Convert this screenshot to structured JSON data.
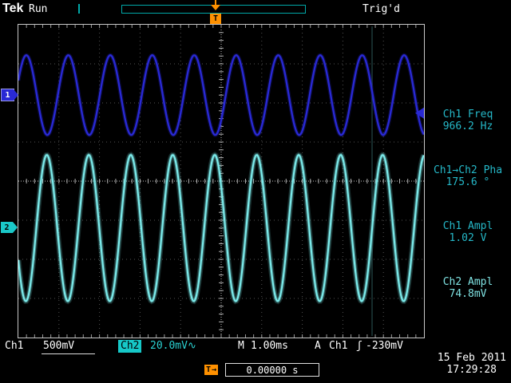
{
  "header": {
    "logo": "Tek",
    "acquisition_status": "Run",
    "trigger_status": "Trig'd",
    "trigger_marker_label": "T"
  },
  "channels": {
    "ch1_marker": "1",
    "ch2_marker": "2"
  },
  "measurements": [
    {
      "id": "ch1-freq",
      "label": "Ch1 Freq",
      "value": "966.2 Hz",
      "color": "#25b8c8"
    },
    {
      "id": "ch1-ch2-phase",
      "label": "Ch1→Ch2 Pha",
      "value": "175.6 °",
      "color": "#25b8c8"
    },
    {
      "id": "ch1-ampl",
      "label": "Ch1 Ampl",
      "value": "1.02 V",
      "color": "#25b8c8"
    },
    {
      "id": "ch2-ampl",
      "label": "Ch2 Ampl",
      "value": "74.8mV",
      "color": "#7fe2e2"
    }
  ],
  "status_bar": {
    "ch1_label": "Ch1",
    "ch1_scale": "500mV",
    "ch2_label": "Ch2",
    "ch2_scale": "20.0mV",
    "ch2_coupling_symbol": "∿",
    "timebase_label": "M",
    "timebase_value": "1.00ms",
    "trigger_mode": "A",
    "trigger_source": "Ch1",
    "trigger_slope_symbol": "ʃ",
    "trigger_level": "-230mV"
  },
  "footer": {
    "trigger_pos_label": "T",
    "trigger_pos_arrow": "→",
    "trigger_pos_value": "0.00000 s",
    "date": "15 Feb 2011",
    "time": "17:29:28"
  },
  "colors": {
    "accent_orange": "#ff9100",
    "graticule_border": "#c8c8c8",
    "readout_teal": "#25b8c8"
  },
  "chart_data": {
    "type": "line",
    "title": "Oscilloscope waveform display",
    "x_divisions": 10,
    "y_divisions": 8,
    "timebase_ms_per_div": 1.0,
    "series": [
      {
        "name": "Ch1",
        "freq_hz": 966.2,
        "amplitude_vpp": 1.02,
        "volts_per_div": 0.5,
        "center_div_from_top": 1.8,
        "phase_deg": 0,
        "color": "#2929d4"
      },
      {
        "name": "Ch2",
        "freq_hz": 966.2,
        "amplitude_vpp": 0.0748,
        "volts_per_div": 0.02,
        "center_div_from_top": 5.2,
        "phase_deg": -175.6,
        "color": "#7deded"
      }
    ],
    "trigger": {
      "source": "Ch1",
      "level_mV": -230,
      "position_s": 0.0
    }
  }
}
